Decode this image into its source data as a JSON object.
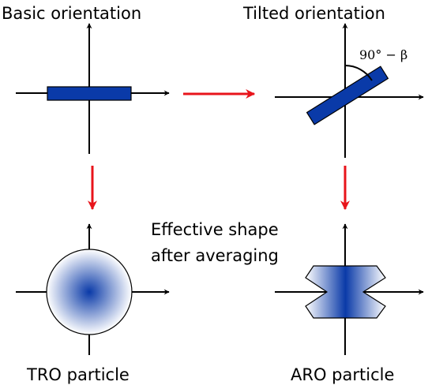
{
  "labels": {
    "basic": "Basic orientation",
    "tilted": "Tilted orientation",
    "angle": "90° − β",
    "effective": [
      "Effective shape",
      "after averaging"
    ],
    "tro": "TRO particle",
    "aro": "ARO particle"
  }
}
